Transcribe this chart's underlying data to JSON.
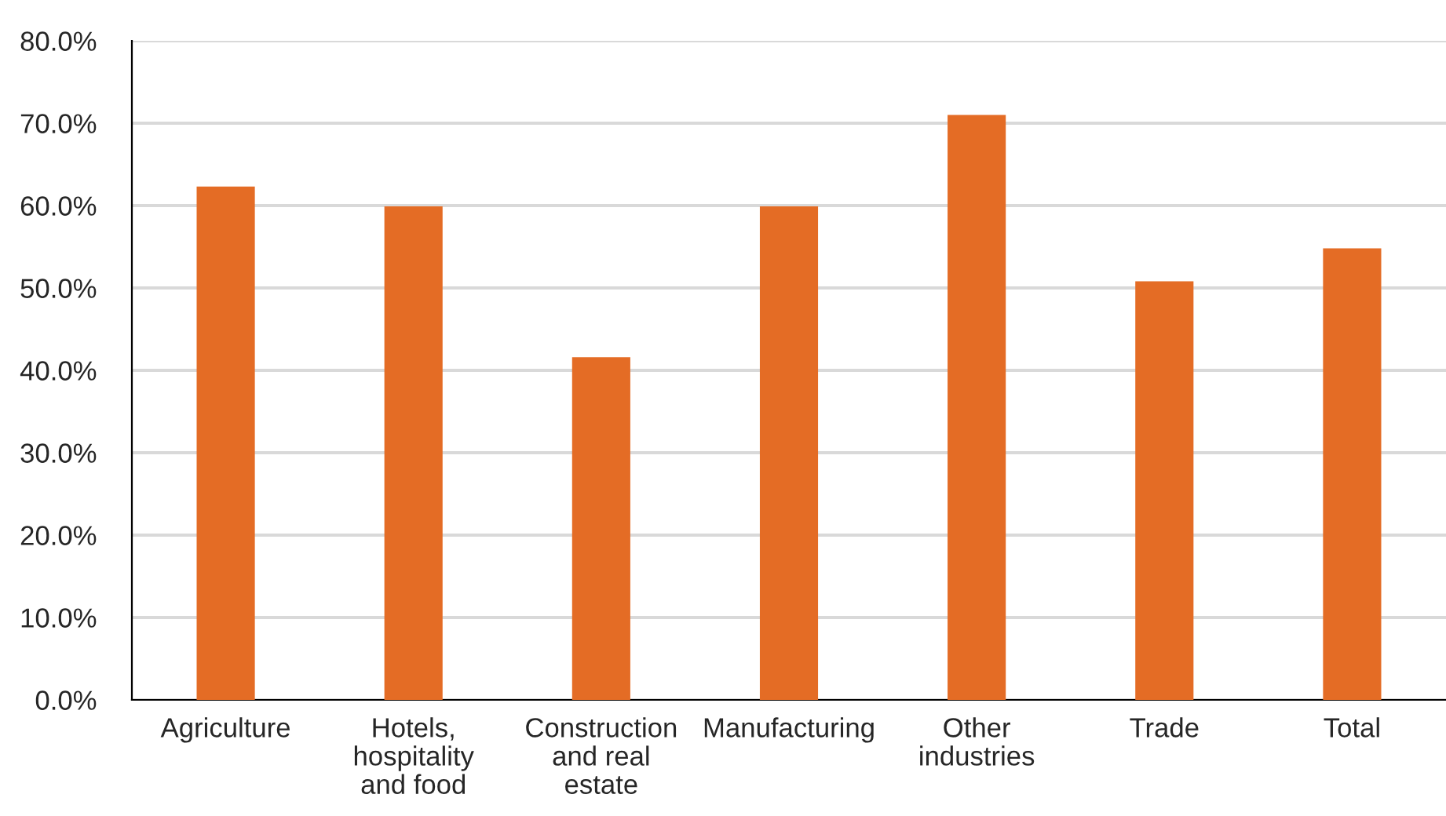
{
  "chart_data": {
    "type": "bar",
    "categories": [
      "Agriculture",
      "Hotels,\nhospitality\nand food",
      "Construction\nand real\nestate",
      "Manufacturing",
      "Other\nindustries",
      "Trade",
      "Total"
    ],
    "values": [
      62.3,
      59.9,
      41.6,
      59.9,
      71.0,
      50.8,
      54.8
    ],
    "color": "#e46c25",
    "ylim": [
      0,
      80
    ],
    "yticks": [
      {
        "value": 0,
        "label": "0.0%"
      },
      {
        "value": 10,
        "label": "10.0%"
      },
      {
        "value": 20,
        "label": "20.0%"
      },
      {
        "value": 30,
        "label": "30.0%"
      },
      {
        "value": 40,
        "label": "40.0%"
      },
      {
        "value": 50,
        "label": "50.0%"
      },
      {
        "value": 60,
        "label": "60.0%"
      },
      {
        "value": 70,
        "label": "70.0%"
      },
      {
        "value": 80,
        "label": "80.0%"
      }
    ],
    "grid": "y"
  }
}
